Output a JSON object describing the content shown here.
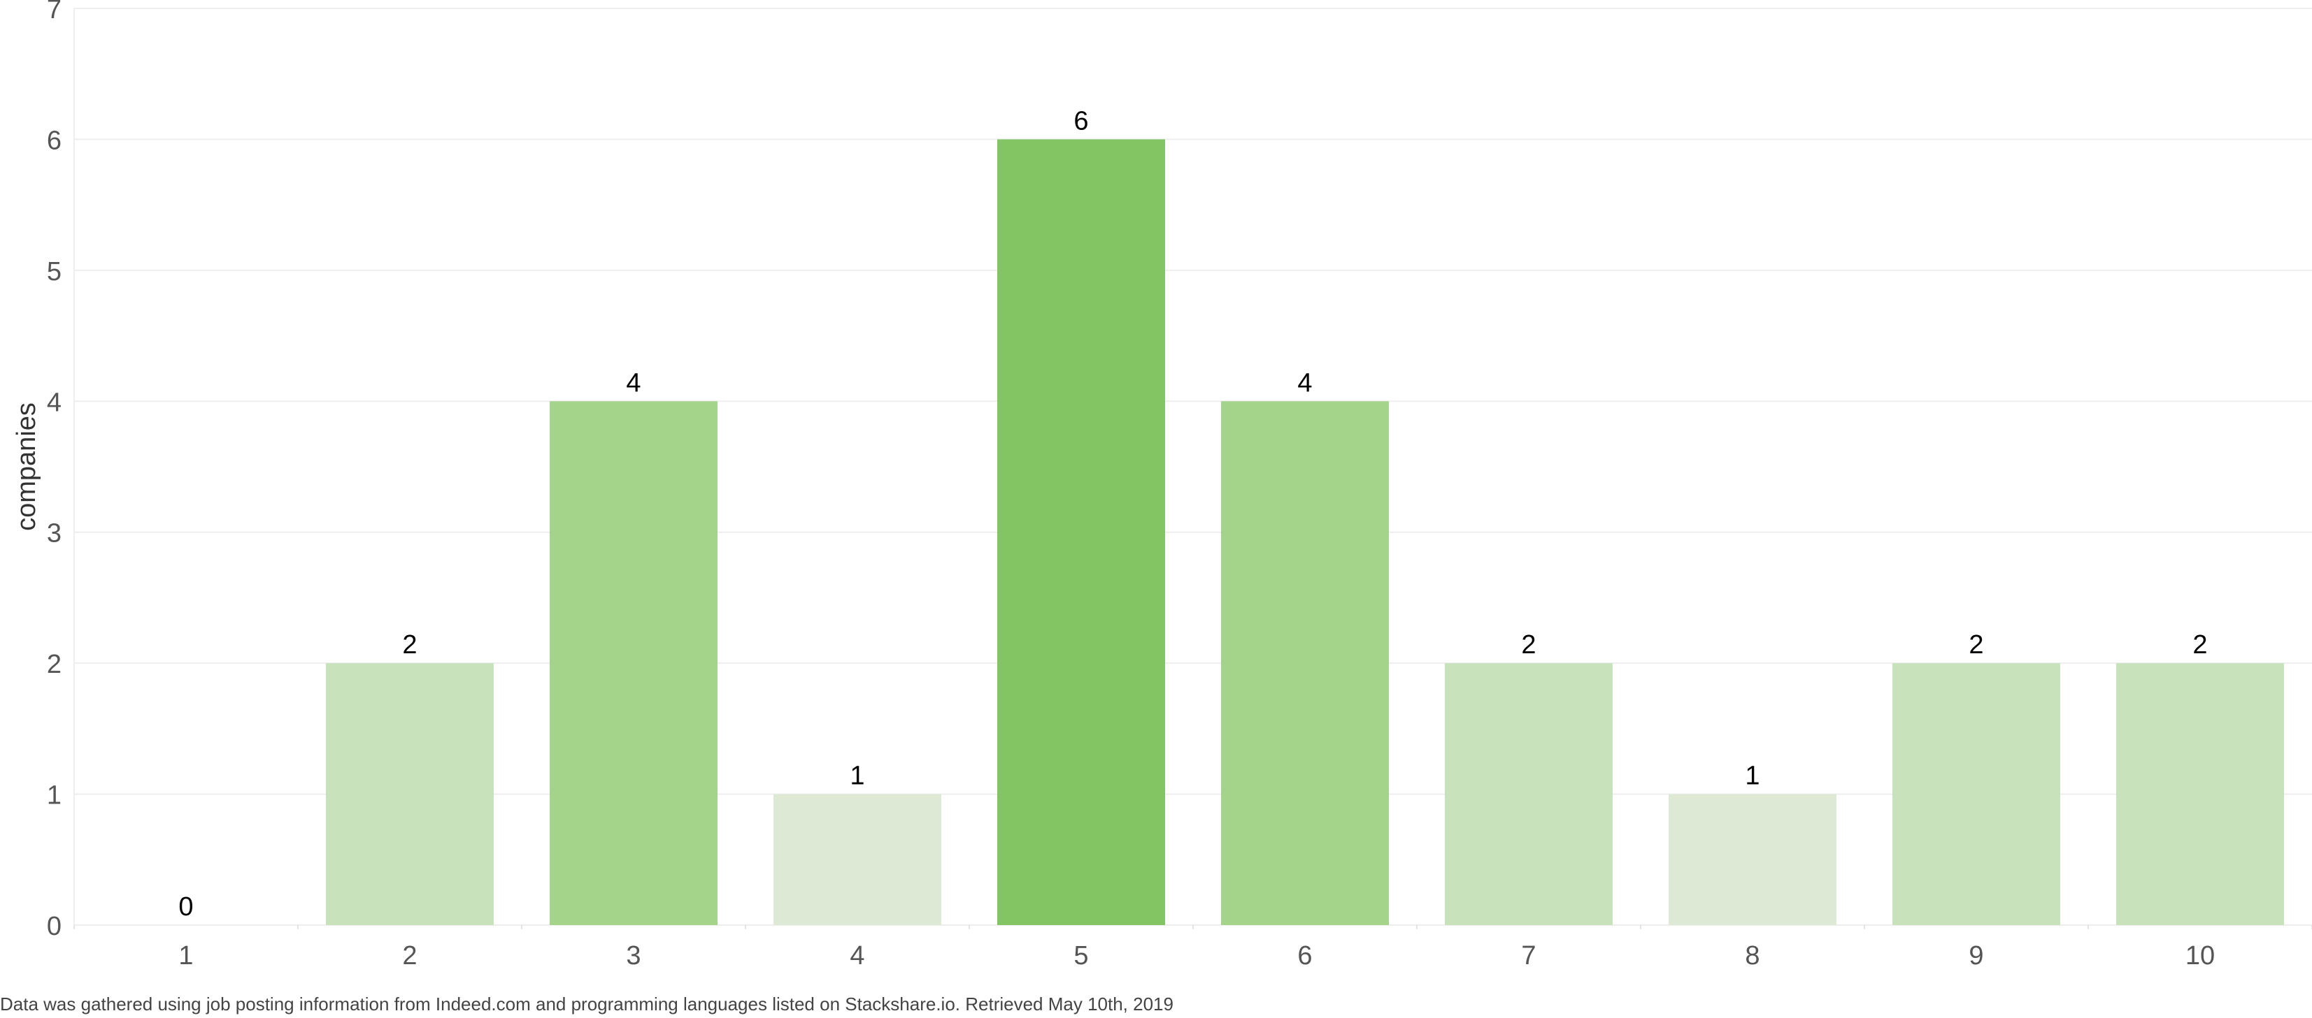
{
  "chart_data": {
    "type": "bar",
    "categories": [
      "1",
      "2",
      "3",
      "4",
      "5",
      "6",
      "7",
      "8",
      "9",
      "10"
    ],
    "values": [
      0,
      2,
      4,
      1,
      6,
      4,
      2,
      1,
      2,
      2
    ],
    "data_labels": [
      "0",
      "2",
      "4",
      "1",
      "6",
      "4",
      "2",
      "1",
      "2",
      "2"
    ],
    "title": "",
    "xlabel": "",
    "ylabel": "companies",
    "ylim": [
      0,
      7
    ],
    "yticks": [
      "0",
      "1",
      "2",
      "3",
      "4",
      "5",
      "6",
      "7"
    ],
    "grid": true,
    "legend": "none",
    "colors": {
      "value_1": "#dde9d4",
      "value_2": "#c8e2bb",
      "value_4": "#a4d38a",
      "value_6": "#83c562",
      "gridline": "#eeeeee",
      "axis_text": "#555555",
      "label_text": "#000000"
    }
  },
  "footnote": "Data was gathered using job posting information from Indeed.com and programming languages listed on Stackshare.io. Retrieved May 10th, 2019"
}
